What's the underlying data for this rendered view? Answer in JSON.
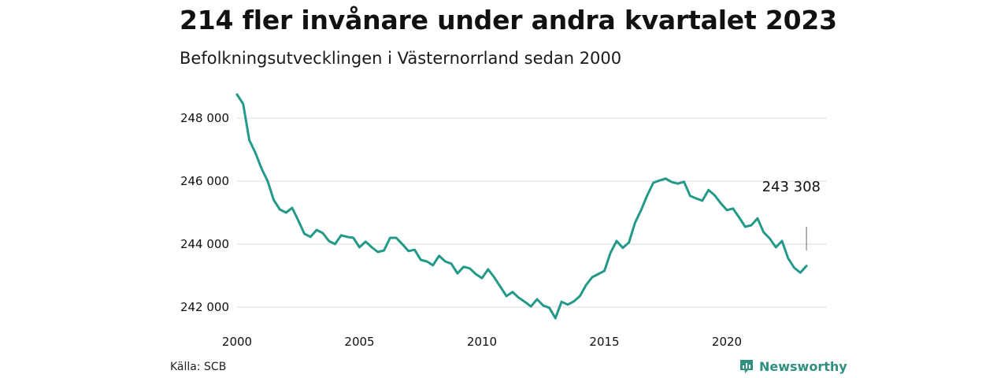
{
  "title": "214 fler invånare under andra kvartalet 2023",
  "subtitle": "Befolkningsutvecklingen i Västernorrland sedan 2000",
  "source": "Källa: SCB",
  "brand": "Newsworthy",
  "colors": {
    "line": "#23998a",
    "grid": "#dcdcdc",
    "brand": "#2f8f80"
  },
  "chart_data": {
    "type": "line",
    "title": "214 fler invånare under andra kvartalet 2023",
    "subtitle": "Befolkningsutvecklingen i Västernorrland sedan 2000",
    "xlabel": "",
    "ylabel": "",
    "xlim": [
      2000,
      2024
    ],
    "ylim": [
      241500,
      249000
    ],
    "grid": true,
    "yticks": [
      242000,
      244000,
      246000,
      248000
    ],
    "ytick_labels": [
      "242 000",
      "244 000",
      "246 000",
      "248 000"
    ],
    "xticks": [
      2000,
      2005,
      2010,
      2015,
      2020
    ],
    "xtick_labels": [
      "2000",
      "2005",
      "2010",
      "2015",
      "2020"
    ],
    "annotation": {
      "label": "243 308",
      "x": 2023.25,
      "value": 243308
    },
    "series": [
      {
        "values": [
          [
            2000.0,
            248750
          ],
          [
            2000.25,
            248450
          ],
          [
            2000.5,
            247300
          ],
          [
            2000.75,
            246900
          ],
          [
            2001.0,
            246400
          ],
          [
            2001.25,
            246000
          ],
          [
            2001.5,
            245400
          ],
          [
            2001.75,
            245100
          ],
          [
            2002.0,
            245000
          ],
          [
            2002.25,
            245150
          ],
          [
            2002.5,
            244750
          ],
          [
            2002.75,
            244330
          ],
          [
            2003.0,
            244230
          ],
          [
            2003.25,
            244450
          ],
          [
            2003.5,
            244350
          ],
          [
            2003.75,
            244100
          ],
          [
            2004.0,
            244000
          ],
          [
            2004.25,
            244280
          ],
          [
            2004.5,
            244230
          ],
          [
            2004.75,
            244200
          ],
          [
            2005.0,
            243900
          ],
          [
            2005.25,
            244080
          ],
          [
            2005.5,
            243900
          ],
          [
            2005.75,
            243750
          ],
          [
            2006.0,
            243800
          ],
          [
            2006.25,
            244200
          ],
          [
            2006.5,
            244200
          ],
          [
            2006.75,
            244000
          ],
          [
            2007.0,
            243780
          ],
          [
            2007.25,
            243820
          ],
          [
            2007.5,
            243500
          ],
          [
            2007.75,
            243450
          ],
          [
            2008.0,
            243330
          ],
          [
            2008.25,
            243630
          ],
          [
            2008.5,
            243450
          ],
          [
            2008.75,
            243380
          ],
          [
            2009.0,
            243070
          ],
          [
            2009.25,
            243280
          ],
          [
            2009.5,
            243230
          ],
          [
            2009.75,
            243050
          ],
          [
            2010.0,
            242920
          ],
          [
            2010.25,
            243200
          ],
          [
            2010.5,
            242950
          ],
          [
            2010.75,
            242650
          ],
          [
            2011.0,
            242350
          ],
          [
            2011.25,
            242480
          ],
          [
            2011.5,
            242300
          ],
          [
            2011.75,
            242170
          ],
          [
            2012.0,
            242020
          ],
          [
            2012.25,
            242250
          ],
          [
            2012.5,
            242050
          ],
          [
            2012.75,
            241980
          ],
          [
            2013.0,
            241650
          ],
          [
            2013.25,
            242170
          ],
          [
            2013.5,
            242080
          ],
          [
            2013.75,
            242180
          ],
          [
            2014.0,
            242350
          ],
          [
            2014.25,
            242700
          ],
          [
            2014.5,
            242950
          ],
          [
            2014.75,
            243050
          ],
          [
            2015.0,
            243150
          ],
          [
            2015.25,
            243730
          ],
          [
            2015.5,
            244100
          ],
          [
            2015.75,
            243880
          ],
          [
            2016.0,
            244050
          ],
          [
            2016.25,
            244680
          ],
          [
            2016.5,
            245080
          ],
          [
            2016.75,
            245550
          ],
          [
            2017.0,
            245950
          ],
          [
            2017.25,
            246020
          ],
          [
            2017.5,
            246080
          ],
          [
            2017.75,
            245970
          ],
          [
            2018.0,
            245920
          ],
          [
            2018.25,
            245980
          ],
          [
            2018.5,
            245530
          ],
          [
            2018.75,
            245450
          ],
          [
            2019.0,
            245380
          ],
          [
            2019.25,
            245720
          ],
          [
            2019.5,
            245550
          ],
          [
            2019.75,
            245300
          ],
          [
            2020.0,
            245080
          ],
          [
            2020.25,
            245130
          ],
          [
            2020.5,
            244850
          ],
          [
            2020.75,
            244550
          ],
          [
            2021.0,
            244600
          ],
          [
            2021.25,
            244820
          ],
          [
            2021.5,
            244380
          ],
          [
            2021.75,
            244180
          ],
          [
            2022.0,
            243900
          ],
          [
            2022.25,
            244100
          ],
          [
            2022.5,
            243550
          ],
          [
            2022.75,
            243250
          ],
          [
            2023.0,
            243094
          ],
          [
            2023.25,
            243308
          ]
        ]
      }
    ]
  }
}
